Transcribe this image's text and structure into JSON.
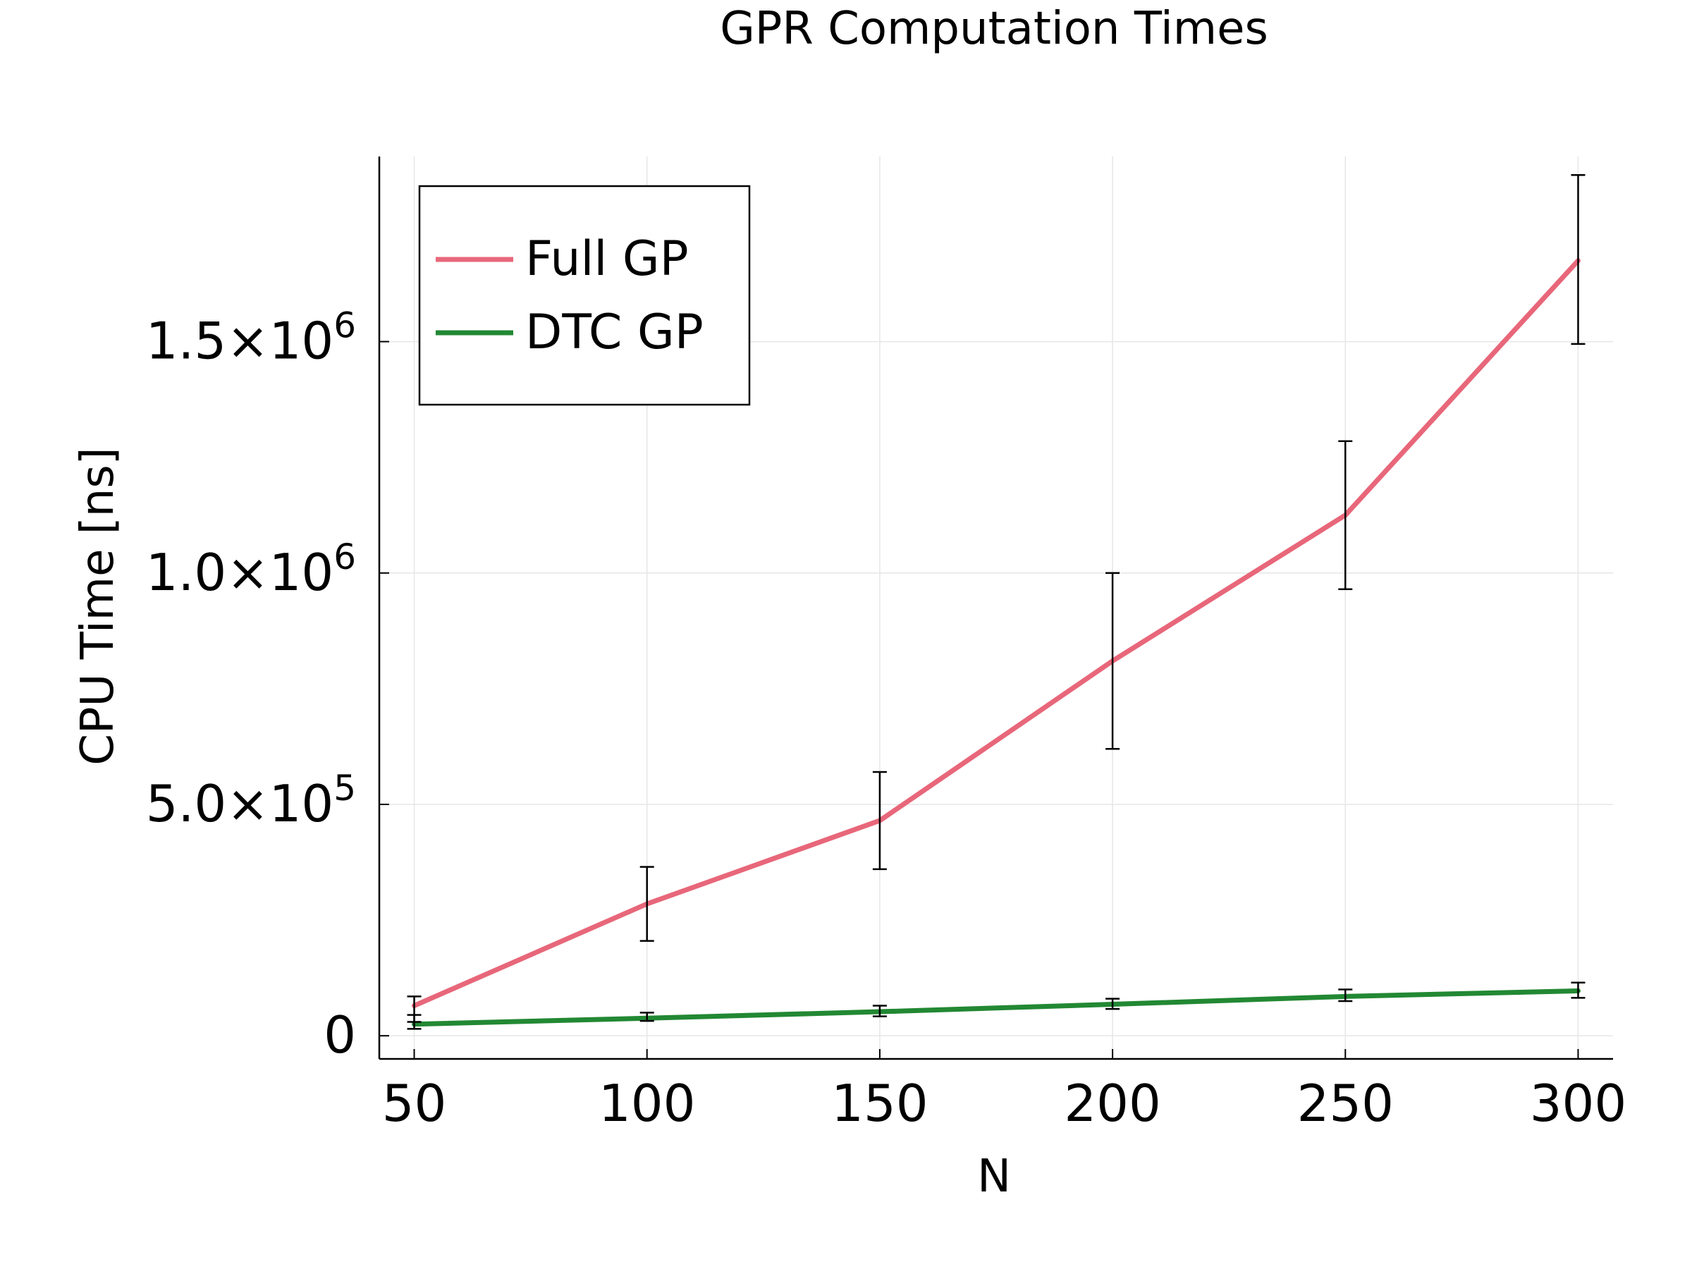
{
  "chart_data": {
    "type": "line",
    "title": "GPR Computation Times",
    "xlabel": "N",
    "ylabel": "CPU Time [ns]",
    "x": [
      50,
      100,
      150,
      200,
      250,
      300
    ],
    "xlim": [
      42.5,
      307.5
    ],
    "ylim": [
      -50000,
      1900000
    ],
    "xticks": [
      50,
      100,
      150,
      200,
      250,
      300
    ],
    "yticks": [
      {
        "value": 0,
        "mantissa": "0",
        "exp": ""
      },
      {
        "value": 500000,
        "mantissa": "5.0×10",
        "exp": "5"
      },
      {
        "value": 1000000,
        "mantissa": "1.0×10",
        "exp": "6"
      },
      {
        "value": 1500000,
        "mantissa": "1.5×10",
        "exp": "6"
      }
    ],
    "grid": true,
    "legend_position": "top-left",
    "series": [
      {
        "name": "Full GP",
        "color": "#e8677a",
        "values": [
          65000,
          285000,
          465000,
          810000,
          1125000,
          1675000
        ],
        "err_low": [
          30000,
          205000,
          360000,
          620000,
          965000,
          1495000
        ],
        "err_high": [
          85000,
          365000,
          570000,
          1000000,
          1285000,
          1860000
        ]
      },
      {
        "name": "DTC GP",
        "color": "#228833",
        "values": [
          25000,
          38000,
          52000,
          68000,
          85000,
          97000
        ],
        "err_low": [
          15000,
          32000,
          42000,
          58000,
          75000,
          82000
        ],
        "err_high": [
          45000,
          50000,
          65000,
          80000,
          100000,
          115000
        ]
      }
    ]
  }
}
